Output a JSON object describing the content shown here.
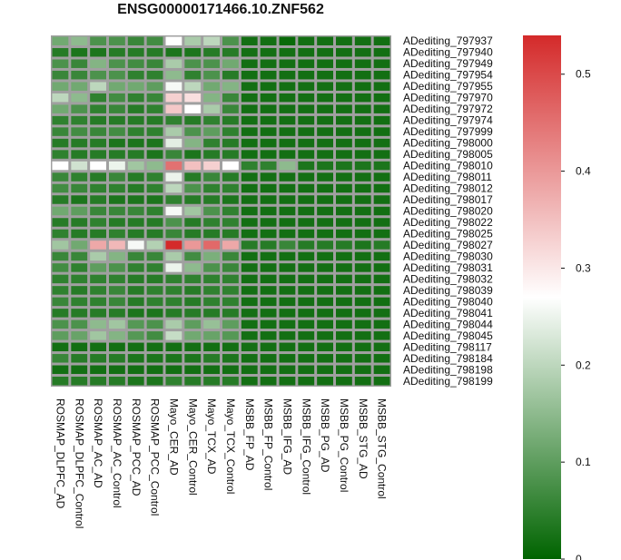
{
  "chart_data": {
    "type": "heatmap",
    "title": "ENSG00000171466.10.ZNF562",
    "columns": [
      "ROSMAP_DLPFC_AD",
      "ROSMAP_DLPFC_Control",
      "ROSMAP_AC_AD",
      "ROSMAP_AC_Control",
      "ROSMAP_PCC_AD",
      "ROSMAP_PCC_Control",
      "Mayo_CER_AD",
      "Mayo_CER_Control",
      "Mayo_TCX_AD",
      "Mayo_TCX_Control",
      "MSBB_FP_AD",
      "MSBB_FP_Control",
      "MSBB_IFG_AD",
      "MSBB_IFG_Control",
      "MSBB_PG_AD",
      "MSBB_PG_Control",
      "MSBB_STG_AD",
      "MSBB_STG_Control"
    ],
    "rows": [
      "ADediting_797937",
      "ADediting_797940",
      "ADediting_797949",
      "ADediting_797954",
      "ADediting_797955",
      "ADediting_797970",
      "ADediting_797972",
      "ADediting_797974",
      "ADediting_797999",
      "ADediting_798000",
      "ADediting_798005",
      "ADediting_798010",
      "ADediting_798011",
      "ADediting_798012",
      "ADediting_798017",
      "ADediting_798020",
      "ADediting_798022",
      "ADediting_798025",
      "ADediting_798027",
      "ADediting_798030",
      "ADediting_798031",
      "ADediting_798032",
      "ADediting_798039",
      "ADediting_798040",
      "ADediting_798041",
      "ADediting_798044",
      "ADediting_798045",
      "ADediting_798117",
      "ADediting_798184",
      "ADediting_798198",
      "ADediting_798199"
    ],
    "values": [
      [
        0.12,
        0.15,
        0.08,
        0.08,
        0.06,
        0.07,
        0.27,
        0.18,
        0.2,
        0.08,
        0.02,
        0.02,
        0.01,
        0.02,
        0.02,
        0.02,
        0.02,
        0.02
      ],
      [
        0.04,
        0.03,
        0.03,
        0.04,
        0.04,
        0.04,
        0.03,
        0.03,
        0.04,
        0.04,
        0.02,
        0.02,
        0.02,
        0.02,
        0.02,
        0.02,
        0.02,
        0.02
      ],
      [
        0.08,
        0.06,
        0.14,
        0.08,
        0.07,
        0.06,
        0.18,
        0.08,
        0.08,
        0.12,
        0.02,
        0.02,
        0.02,
        0.02,
        0.02,
        0.02,
        0.02,
        0.02
      ],
      [
        0.06,
        0.06,
        0.08,
        0.08,
        0.05,
        0.05,
        0.15,
        0.05,
        0.08,
        0.04,
        0.02,
        0.02,
        0.02,
        0.02,
        0.02,
        0.02,
        0.02,
        0.02
      ],
      [
        0.12,
        0.12,
        0.2,
        0.12,
        0.12,
        0.1,
        0.26,
        0.2,
        0.12,
        0.14,
        0.02,
        0.02,
        0.02,
        0.02,
        0.02,
        0.02,
        0.02,
        0.02
      ],
      [
        0.2,
        0.15,
        0.05,
        0.07,
        0.05,
        0.06,
        0.33,
        0.31,
        0.14,
        0.06,
        0.02,
        0.02,
        0.02,
        0.02,
        0.02,
        0.02,
        0.02,
        0.02
      ],
      [
        0.12,
        0.08,
        0.05,
        0.06,
        0.04,
        0.05,
        0.34,
        0.27,
        0.18,
        0.06,
        0.02,
        0.02,
        0.02,
        0.02,
        0.02,
        0.02,
        0.02,
        0.02
      ],
      [
        0.05,
        0.05,
        0.04,
        0.04,
        0.04,
        0.04,
        0.05,
        0.04,
        0.05,
        0.04,
        0.02,
        0.02,
        0.02,
        0.02,
        0.02,
        0.02,
        0.02,
        0.02
      ],
      [
        0.06,
        0.07,
        0.06,
        0.07,
        0.05,
        0.05,
        0.18,
        0.08,
        0.1,
        0.05,
        0.02,
        0.02,
        0.02,
        0.02,
        0.02,
        0.02,
        0.02,
        0.02
      ],
      [
        0.04,
        0.04,
        0.04,
        0.03,
        0.03,
        0.03,
        0.24,
        0.14,
        0.05,
        0.04,
        0.02,
        0.02,
        0.02,
        0.02,
        0.02,
        0.02,
        0.02,
        0.02
      ],
      [
        0.05,
        0.04,
        0.04,
        0.04,
        0.04,
        0.03,
        0.06,
        0.03,
        0.04,
        0.04,
        0.02,
        0.02,
        0.02,
        0.02,
        0.02,
        0.02,
        0.02,
        0.02
      ],
      [
        0.27,
        0.22,
        0.27,
        0.25,
        0.17,
        0.15,
        0.45,
        0.35,
        0.33,
        0.27,
        0.05,
        0.05,
        0.15,
        0.03,
        0.03,
        0.03,
        0.03,
        0.03
      ],
      [
        0.06,
        0.05,
        0.04,
        0.06,
        0.04,
        0.05,
        0.25,
        0.04,
        0.06,
        0.04,
        0.02,
        0.02,
        0.02,
        0.02,
        0.02,
        0.02,
        0.02,
        0.02
      ],
      [
        0.07,
        0.06,
        0.05,
        0.05,
        0.04,
        0.05,
        0.2,
        0.08,
        0.05,
        0.05,
        0.02,
        0.02,
        0.02,
        0.02,
        0.02,
        0.02,
        0.02,
        0.02
      ],
      [
        0.04,
        0.03,
        0.04,
        0.03,
        0.03,
        0.03,
        0.05,
        0.04,
        0.04,
        0.03,
        0.02,
        0.02,
        0.02,
        0.02,
        0.02,
        0.02,
        0.02,
        0.02
      ],
      [
        0.12,
        0.1,
        0.06,
        0.06,
        0.06,
        0.05,
        0.26,
        0.17,
        0.08,
        0.05,
        0.02,
        0.02,
        0.02,
        0.02,
        0.02,
        0.02,
        0.02,
        0.02
      ],
      [
        0.04,
        0.04,
        0.05,
        0.04,
        0.04,
        0.04,
        0.08,
        0.04,
        0.05,
        0.05,
        0.02,
        0.02,
        0.02,
        0.02,
        0.02,
        0.02,
        0.02,
        0.02
      ],
      [
        0.05,
        0.04,
        0.04,
        0.05,
        0.04,
        0.04,
        0.06,
        0.04,
        0.04,
        0.04,
        0.02,
        0.02,
        0.02,
        0.02,
        0.02,
        0.02,
        0.02,
        0.02
      ],
      [
        0.17,
        0.12,
        0.38,
        0.36,
        0.26,
        0.19,
        0.54,
        0.4,
        0.46,
        0.38,
        0.04,
        0.04,
        0.06,
        0.04,
        0.04,
        0.04,
        0.03,
        0.04
      ],
      [
        0.06,
        0.06,
        0.18,
        0.14,
        0.06,
        0.06,
        0.18,
        0.07,
        0.13,
        0.06,
        0.02,
        0.02,
        0.02,
        0.02,
        0.02,
        0.02,
        0.02,
        0.02
      ],
      [
        0.07,
        0.05,
        0.1,
        0.08,
        0.05,
        0.05,
        0.25,
        0.15,
        0.08,
        0.06,
        0.02,
        0.02,
        0.02,
        0.02,
        0.02,
        0.02,
        0.02,
        0.02
      ],
      [
        0.05,
        0.05,
        0.05,
        0.05,
        0.04,
        0.04,
        0.05,
        0.05,
        0.05,
        0.05,
        0.02,
        0.02,
        0.02,
        0.02,
        0.02,
        0.02,
        0.02,
        0.02
      ],
      [
        0.05,
        0.04,
        0.05,
        0.06,
        0.04,
        0.05,
        0.05,
        0.04,
        0.05,
        0.05,
        0.02,
        0.02,
        0.02,
        0.02,
        0.02,
        0.02,
        0.02,
        0.02
      ],
      [
        0.06,
        0.05,
        0.05,
        0.06,
        0.04,
        0.05,
        0.05,
        0.04,
        0.05,
        0.05,
        0.02,
        0.02,
        0.02,
        0.02,
        0.02,
        0.02,
        0.02,
        0.02
      ],
      [
        0.04,
        0.04,
        0.04,
        0.04,
        0.03,
        0.03,
        0.04,
        0.04,
        0.04,
        0.04,
        0.02,
        0.02,
        0.02,
        0.02,
        0.02,
        0.02,
        0.02,
        0.02
      ],
      [
        0.08,
        0.08,
        0.15,
        0.17,
        0.09,
        0.08,
        0.18,
        0.1,
        0.16,
        0.1,
        0.02,
        0.02,
        0.02,
        0.02,
        0.02,
        0.02,
        0.02,
        0.02
      ],
      [
        0.1,
        0.11,
        0.17,
        0.14,
        0.09,
        0.07,
        0.21,
        0.12,
        0.11,
        0.09,
        0.02,
        0.02,
        0.02,
        0.02,
        0.02,
        0.02,
        0.02,
        0.02
      ],
      [
        0.02,
        0.02,
        0.02,
        0.02,
        0.02,
        0.02,
        0.02,
        0.02,
        0.02,
        0.02,
        0.02,
        0.02,
        0.02,
        0.02,
        0.02,
        0.02,
        0.02,
        0.02
      ],
      [
        0.06,
        0.04,
        0.04,
        0.04,
        0.03,
        0.03,
        0.03,
        0.03,
        0.04,
        0.03,
        0.02,
        0.02,
        0.02,
        0.02,
        0.02,
        0.02,
        0.02,
        0.02
      ],
      [
        0.02,
        0.02,
        0.02,
        0.02,
        0.02,
        0.02,
        0.02,
        0.02,
        0.02,
        0.02,
        0.02,
        0.02,
        0.02,
        0.02,
        0.02,
        0.02,
        0.02,
        0.02
      ],
      [
        0.04,
        0.04,
        0.04,
        0.04,
        0.03,
        0.03,
        0.05,
        0.04,
        0.04,
        0.04,
        0.02,
        0.02,
        0.02,
        0.02,
        0.02,
        0.02,
        0.02,
        0.02
      ]
    ],
    "colorbar": {
      "range": [
        0,
        0.54
      ],
      "ticks": [
        0,
        0.1,
        0.2,
        0.3,
        0.4,
        0.5
      ],
      "tick_labels": [
        "0",
        "0.1",
        "0.2",
        "0.3",
        "0.4",
        "0.5"
      ],
      "colors": [
        "#006400",
        "#ffffff",
        "#d42a2a"
      ],
      "midpoint": 0.27
    },
    "colors": {
      "grid": "#a0a0a0"
    }
  }
}
